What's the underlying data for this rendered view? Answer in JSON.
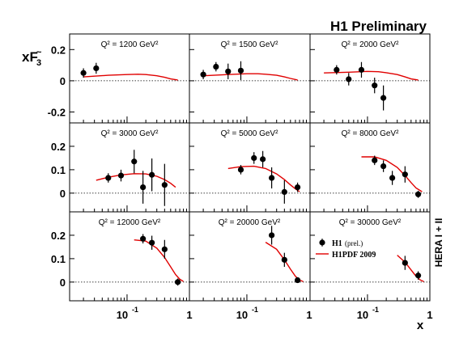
{
  "header": {
    "title": "H1 Preliminary"
  },
  "side_label": "HERA I + II",
  "axis_labels": {
    "x": "x",
    "y": "xF",
    "y_sub": "3",
    "y_tilde": "~"
  },
  "tick_labels": {
    "y": {
      "row1": [
        {
          "label": "0.2",
          "value": 0.2
        },
        {
          "label": "0",
          "value": 0
        },
        {
          "label": "-0.2",
          "value": -0.2
        }
      ],
      "row23": [
        {
          "label": "0.2",
          "value": 0.2
        },
        {
          "label": "0.1",
          "value": 0.1
        },
        {
          "label": "0",
          "value": 0
        }
      ]
    },
    "x": {
      "per_column": [
        {
          "base": "10",
          "exp": "-1",
          "value": 0.1
        },
        {
          "base": "1",
          "exp": "",
          "value": 1
        }
      ]
    }
  },
  "legend": {
    "data_label": "H1",
    "data_sub": "(prel.)",
    "curve_label": "H1PDF 2009",
    "curve_color": "#e00000",
    "marker_color": "#000000"
  },
  "chart_data": {
    "type": "scatter",
    "xlabel": "x",
    "ylabel": "xF3",
    "x_scale": "log",
    "xlim": [
      0.012,
      1.0
    ],
    "ylim_row1": [
      -0.27,
      0.3
    ],
    "ylim_rows23": [
      -0.08,
      0.3
    ],
    "grid": false,
    "zero_line": "dotted",
    "legend_position": "bottom-right panel",
    "panels": [
      {
        "q2": "Q² = 1200 GeV²",
        "points": [
          {
            "x": 0.02,
            "y": 0.05,
            "e": 0.03
          },
          {
            "x": 0.032,
            "y": 0.08,
            "e": 0.035
          }
        ],
        "curve": [
          [
            0.02,
            0.025
          ],
          [
            0.05,
            0.035
          ],
          [
            0.1,
            0.04
          ],
          [
            0.15,
            0.042
          ],
          [
            0.2,
            0.04
          ],
          [
            0.3,
            0.032
          ],
          [
            0.4,
            0.022
          ],
          [
            0.5,
            0.012
          ],
          [
            0.65,
            0.005
          ]
        ]
      },
      {
        "q2": "Q² = 1500 GeV²",
        "points": [
          {
            "x": 0.02,
            "y": 0.04,
            "e": 0.03
          },
          {
            "x": 0.032,
            "y": 0.09,
            "e": 0.03
          },
          {
            "x": 0.05,
            "y": 0.06,
            "e": 0.05
          },
          {
            "x": 0.08,
            "y": 0.065,
            "e": 0.06
          }
        ],
        "curve": [
          [
            0.02,
            0.032
          ],
          [
            0.05,
            0.04
          ],
          [
            0.1,
            0.045
          ],
          [
            0.15,
            0.045
          ],
          [
            0.2,
            0.042
          ],
          [
            0.3,
            0.035
          ],
          [
            0.4,
            0.025
          ],
          [
            0.5,
            0.015
          ],
          [
            0.65,
            0.005
          ]
        ]
      },
      {
        "q2": "Q² = 2000 GeV²",
        "points": [
          {
            "x": 0.032,
            "y": 0.07,
            "e": 0.03
          },
          {
            "x": 0.05,
            "y": 0.01,
            "e": 0.04
          },
          {
            "x": 0.08,
            "y": 0.07,
            "e": 0.05
          },
          {
            "x": 0.13,
            "y": -0.03,
            "e": 0.05
          },
          {
            "x": 0.18,
            "y": -0.11,
            "e": 0.08
          }
        ],
        "curve": [
          [
            0.02,
            0.05
          ],
          [
            0.05,
            0.055
          ],
          [
            0.1,
            0.06
          ],
          [
            0.15,
            0.058
          ],
          [
            0.2,
            0.052
          ],
          [
            0.3,
            0.04
          ],
          [
            0.4,
            0.025
          ],
          [
            0.5,
            0.012
          ],
          [
            0.65,
            0.005
          ]
        ]
      },
      {
        "q2": "Q² = 3000 GeV²",
        "points": [
          {
            "x": 0.05,
            "y": 0.065,
            "e": 0.02
          },
          {
            "x": 0.08,
            "y": 0.075,
            "e": 0.025
          },
          {
            "x": 0.13,
            "y": 0.135,
            "e": 0.05
          },
          {
            "x": 0.18,
            "y": 0.025,
            "e": 0.07
          },
          {
            "x": 0.25,
            "y": 0.078,
            "e": 0.07
          },
          {
            "x": 0.4,
            "y": 0.035,
            "e": 0.09
          }
        ],
        "curve": [
          [
            0.032,
            0.055
          ],
          [
            0.05,
            0.068
          ],
          [
            0.08,
            0.078
          ],
          [
            0.13,
            0.083
          ],
          [
            0.2,
            0.082
          ],
          [
            0.3,
            0.072
          ],
          [
            0.4,
            0.058
          ],
          [
            0.5,
            0.042
          ],
          [
            0.6,
            0.025
          ]
        ]
      },
      {
        "q2": "Q² = 5000 GeV²",
        "points": [
          {
            "x": 0.08,
            "y": 0.1,
            "e": 0.02
          },
          {
            "x": 0.13,
            "y": 0.15,
            "e": 0.025
          },
          {
            "x": 0.18,
            "y": 0.145,
            "e": 0.035
          },
          {
            "x": 0.25,
            "y": 0.065,
            "e": 0.045
          },
          {
            "x": 0.4,
            "y": 0.005,
            "e": 0.05
          },
          {
            "x": 0.65,
            "y": 0.025,
            "e": 0.02
          }
        ],
        "curve": [
          [
            0.05,
            0.105
          ],
          [
            0.08,
            0.113
          ],
          [
            0.13,
            0.115
          ],
          [
            0.2,
            0.105
          ],
          [
            0.3,
            0.082
          ],
          [
            0.4,
            0.058
          ],
          [
            0.5,
            0.035
          ],
          [
            0.6,
            0.018
          ],
          [
            0.7,
            0.006
          ]
        ]
      },
      {
        "q2": "Q² = 8000 GeV²",
        "points": [
          {
            "x": 0.13,
            "y": 0.14,
            "e": 0.02
          },
          {
            "x": 0.18,
            "y": 0.115,
            "e": 0.025
          },
          {
            "x": 0.25,
            "y": 0.065,
            "e": 0.03
          },
          {
            "x": 0.4,
            "y": 0.08,
            "e": 0.035
          },
          {
            "x": 0.65,
            "y": -0.005,
            "e": 0.015
          }
        ],
        "curve": [
          [
            0.08,
            0.155
          ],
          [
            0.13,
            0.155
          ],
          [
            0.2,
            0.14
          ],
          [
            0.3,
            0.11
          ],
          [
            0.4,
            0.075
          ],
          [
            0.5,
            0.045
          ],
          [
            0.6,
            0.022
          ],
          [
            0.75,
            0.006
          ]
        ]
      },
      {
        "q2": "Q² = 12000 GeV²",
        "points": [
          {
            "x": 0.18,
            "y": 0.185,
            "e": 0.02
          },
          {
            "x": 0.25,
            "y": 0.168,
            "e": 0.03
          },
          {
            "x": 0.4,
            "y": 0.14,
            "e": 0.04
          },
          {
            "x": 0.65,
            "y": 0.0,
            "e": 0.015
          }
        ],
        "curve": [
          [
            0.13,
            0.18
          ],
          [
            0.2,
            0.175
          ],
          [
            0.3,
            0.145
          ],
          [
            0.4,
            0.105
          ],
          [
            0.5,
            0.065
          ],
          [
            0.6,
            0.032
          ],
          [
            0.7,
            0.012
          ],
          [
            0.8,
            0.003
          ]
        ]
      },
      {
        "q2": "Q² = 20000 GeV²",
        "points": [
          {
            "x": 0.25,
            "y": 0.2,
            "e": 0.04
          },
          {
            "x": 0.4,
            "y": 0.095,
            "e": 0.03
          },
          {
            "x": 0.65,
            "y": 0.008,
            "e": 0.01
          }
        ],
        "curve": [
          [
            0.2,
            0.17
          ],
          [
            0.3,
            0.14
          ],
          [
            0.4,
            0.095
          ],
          [
            0.5,
            0.055
          ],
          [
            0.6,
            0.025
          ],
          [
            0.7,
            0.009
          ],
          [
            0.8,
            0.002
          ]
        ]
      },
      {
        "q2": "Q² = 30000 GeV²",
        "points": [
          {
            "x": 0.4,
            "y": 0.082,
            "e": 0.03
          },
          {
            "x": 0.65,
            "y": 0.028,
            "e": 0.018
          }
        ],
        "curve": [
          [
            0.3,
            0.115
          ],
          [
            0.4,
            0.085
          ],
          [
            0.5,
            0.052
          ],
          [
            0.6,
            0.025
          ],
          [
            0.7,
            0.009
          ],
          [
            0.8,
            0.002
          ]
        ]
      }
    ]
  }
}
